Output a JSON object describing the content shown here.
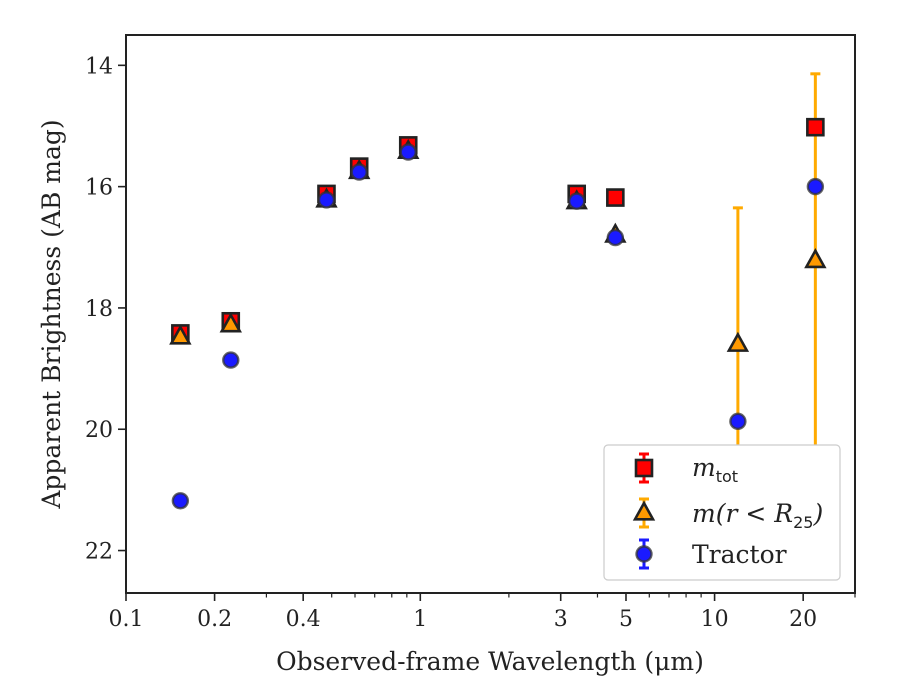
{
  "chart_data": {
    "type": "scatter",
    "xscale": "log",
    "xlim": [
      0.1,
      30
    ],
    "ylim": [
      22.7,
      13.5
    ],
    "y_inverted": true,
    "xlabel": "Observed-frame Wavelength (μm)",
    "ylabel": "Apparent Brightness (AB mag)",
    "x_ticks": [
      {
        "value": 0.1,
        "label": "0.1"
      },
      {
        "value": 0.2,
        "label": "0.2"
      },
      {
        "value": 0.4,
        "label": "0.4"
      },
      {
        "value": 1,
        "label": "1"
      },
      {
        "value": 3,
        "label": "3"
      },
      {
        "value": 5,
        "label": "5"
      },
      {
        "value": 10,
        "label": "10"
      },
      {
        "value": 20,
        "label": "20"
      }
    ],
    "y_ticks": [
      {
        "value": 14,
        "label": "14"
      },
      {
        "value": 16,
        "label": "16"
      },
      {
        "value": 18,
        "label": "18"
      },
      {
        "value": 20,
        "label": "20"
      },
      {
        "value": 22,
        "label": "22"
      }
    ],
    "grid": false,
    "legend_position": "bottom-right",
    "series": [
      {
        "name": "m_tot",
        "legend_main": "m",
        "legend_sub": "tot",
        "marker": "square",
        "color": "#ff0000",
        "edgecolor": "#222222",
        "points": [
          {
            "x": 0.153,
            "y": 18.42,
            "err": 0.05
          },
          {
            "x": 0.227,
            "y": 18.22,
            "err": 0.05
          },
          {
            "x": 0.48,
            "y": 16.12,
            "err": 0.05
          },
          {
            "x": 0.62,
            "y": 15.67,
            "err": 0.05
          },
          {
            "x": 0.91,
            "y": 15.32,
            "err": 0.05
          },
          {
            "x": 3.4,
            "y": 16.12,
            "err": 0.05
          },
          {
            "x": 4.6,
            "y": 16.18,
            "err": 0.05
          },
          {
            "x": 22,
            "y": 15.02,
            "err": 0.05
          }
        ]
      },
      {
        "name": "m(r < R_25)",
        "legend_main": "m(r < R",
        "legend_sub": "25",
        "legend_tail": ")",
        "marker": "triangle",
        "color": "#ff9900",
        "edgecolor": "#222222",
        "errcolor": "#ffaa00",
        "points": [
          {
            "x": 0.153,
            "y": 18.48,
            "err": 0.05
          },
          {
            "x": 0.227,
            "y": 18.28,
            "err": 0.05
          },
          {
            "x": 0.48,
            "y": 16.22,
            "err": 0.05
          },
          {
            "x": 0.62,
            "y": 15.75,
            "err": 0.05
          },
          {
            "x": 0.91,
            "y": 15.42,
            "err": 0.05
          },
          {
            "x": 3.4,
            "y": 16.25,
            "err": 0.05
          },
          {
            "x": 4.6,
            "y": 16.8,
            "err": 0.05
          },
          {
            "x": 12,
            "y": 18.6,
            "err": 2.25
          },
          {
            "x": 22,
            "y": 17.22,
            "err": 3.08
          }
        ]
      },
      {
        "name": "Tractor",
        "marker": "circle",
        "color": "#1a1aff",
        "edgecolor": "#333333",
        "points": [
          {
            "x": 0.153,
            "y": 21.18,
            "err": 0.05
          },
          {
            "x": 0.227,
            "y": 18.86,
            "err": 0.05
          },
          {
            "x": 0.48,
            "y": 16.22,
            "err": 0.05
          },
          {
            "x": 0.62,
            "y": 15.76,
            "err": 0.05
          },
          {
            "x": 0.91,
            "y": 15.43,
            "err": 0.05
          },
          {
            "x": 3.4,
            "y": 16.24,
            "err": 0.05
          },
          {
            "x": 4.6,
            "y": 16.84,
            "err": 0.05
          },
          {
            "x": 12,
            "y": 19.87,
            "err": 0.05
          },
          {
            "x": 22,
            "y": 16.0,
            "err": 0.05
          }
        ]
      }
    ]
  }
}
